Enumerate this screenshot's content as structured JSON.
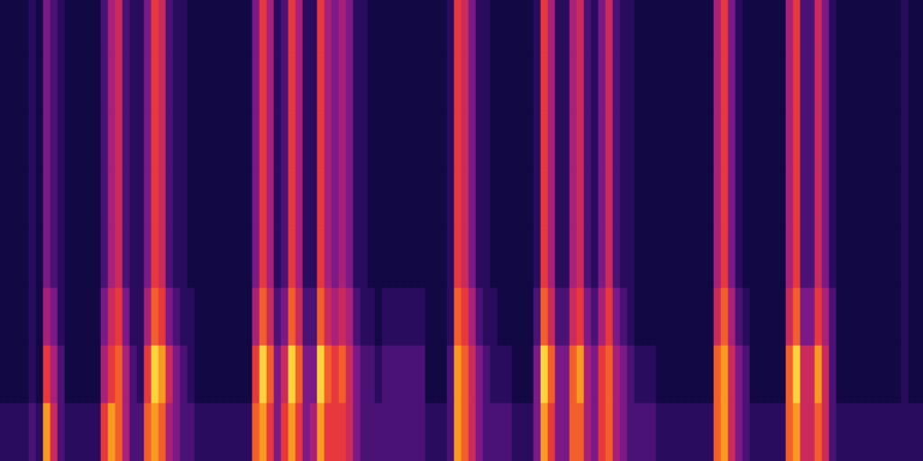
{
  "chart_data": {
    "type": "heatmap",
    "tick_labels": false,
    "grid": false,
    "zlim": [
      0,
      9
    ],
    "cells": [
      [
        0,
        0,
        0,
        0,
        1,
        0,
        3,
        2,
        1,
        0,
        0,
        0,
        0,
        0,
        2,
        4,
        5,
        2,
        1,
        1,
        3,
        6,
        5,
        2,
        1,
        1,
        0,
        0,
        0,
        0,
        0,
        0,
        0,
        0,
        0,
        3,
        6,
        4,
        1,
        2,
        6,
        4,
        1,
        1,
        6,
        4,
        3,
        4,
        3,
        1,
        1,
        0,
        0,
        0,
        0,
        0,
        0,
        0,
        0,
        0,
        0,
        0,
        1,
        6,
        5,
        3,
        1,
        1,
        0,
        0,
        0,
        0,
        0,
        0,
        1,
        6,
        4,
        1,
        1,
        4,
        5,
        2,
        1,
        3,
        5,
        2,
        1,
        1,
        0,
        0,
        0,
        0,
        0,
        0,
        0,
        0,
        0,
        0,
        0,
        4,
        6,
        3,
        1,
        0,
        0,
        0,
        0,
        0,
        0,
        4,
        6,
        2,
        2,
        5,
        3,
        1,
        0,
        0,
        0,
        0,
        0,
        0,
        0,
        0,
        0,
        1,
        0,
        0
      ],
      [
        0,
        0,
        0,
        0,
        1,
        0,
        3,
        2,
        1,
        0,
        0,
        0,
        0,
        0,
        2,
        4,
        5,
        2,
        1,
        1,
        3,
        6,
        5,
        2,
        1,
        1,
        0,
        0,
        0,
        0,
        0,
        0,
        0,
        0,
        0,
        3,
        6,
        4,
        1,
        2,
        6,
        4,
        1,
        1,
        6,
        4,
        3,
        4,
        3,
        1,
        1,
        0,
        0,
        0,
        0,
        0,
        0,
        0,
        0,
        0,
        0,
        0,
        1,
        6,
        5,
        3,
        1,
        1,
        0,
        0,
        0,
        0,
        0,
        0,
        1,
        6,
        4,
        1,
        1,
        4,
        5,
        2,
        1,
        3,
        5,
        2,
        1,
        1,
        0,
        0,
        0,
        0,
        0,
        0,
        0,
        0,
        0,
        0,
        0,
        4,
        6,
        3,
        1,
        0,
        0,
        0,
        0,
        0,
        0,
        4,
        6,
        2,
        2,
        5,
        3,
        1,
        0,
        0,
        0,
        0,
        0,
        0,
        0,
        0,
        0,
        1,
        0,
        0
      ],
      [
        0,
        0,
        0,
        0,
        1,
        0,
        3,
        2,
        1,
        0,
        0,
        0,
        0,
        0,
        2,
        4,
        5,
        2,
        1,
        1,
        3,
        6,
        5,
        2,
        1,
        1,
        0,
        0,
        0,
        0,
        0,
        0,
        0,
        0,
        0,
        3,
        6,
        4,
        1,
        2,
        6,
        4,
        1,
        1,
        6,
        4,
        3,
        4,
        3,
        1,
        1,
        0,
        0,
        0,
        0,
        0,
        0,
        0,
        0,
        0,
        0,
        0,
        1,
        6,
        5,
        3,
        1,
        1,
        0,
        0,
        0,
        0,
        0,
        0,
        1,
        6,
        4,
        1,
        1,
        4,
        5,
        2,
        1,
        3,
        5,
        2,
        1,
        1,
        0,
        0,
        0,
        0,
        0,
        0,
        0,
        0,
        0,
        0,
        0,
        4,
        6,
        3,
        1,
        0,
        0,
        0,
        0,
        0,
        0,
        4,
        6,
        2,
        2,
        5,
        3,
        1,
        0,
        0,
        0,
        0,
        0,
        0,
        0,
        0,
        0,
        1,
        0,
        0
      ],
      [
        0,
        0,
        0,
        0,
        1,
        0,
        3,
        2,
        1,
        0,
        0,
        0,
        0,
        0,
        2,
        4,
        5,
        2,
        1,
        1,
        3,
        6,
        5,
        2,
        1,
        1,
        0,
        0,
        0,
        0,
        0,
        0,
        0,
        0,
        0,
        3,
        6,
        4,
        1,
        2,
        6,
        4,
        1,
        1,
        6,
        4,
        3,
        4,
        3,
        1,
        1,
        0,
        0,
        0,
        0,
        0,
        0,
        0,
        0,
        0,
        0,
        0,
        1,
        6,
        5,
        3,
        1,
        1,
        0,
        0,
        0,
        0,
        0,
        0,
        1,
        6,
        4,
        1,
        1,
        4,
        5,
        2,
        1,
        3,
        5,
        2,
        1,
        1,
        0,
        0,
        0,
        0,
        0,
        0,
        0,
        0,
        0,
        0,
        0,
        4,
        6,
        3,
        1,
        0,
        0,
        0,
        0,
        0,
        0,
        4,
        6,
        2,
        2,
        5,
        3,
        1,
        0,
        0,
        0,
        0,
        0,
        0,
        0,
        0,
        0,
        1,
        0,
        0
      ],
      [
        0,
        0,
        0,
        0,
        1,
        0,
        3,
        2,
        1,
        0,
        0,
        0,
        0,
        0,
        2,
        4,
        5,
        2,
        1,
        1,
        3,
        6,
        5,
        2,
        1,
        1,
        0,
        0,
        0,
        0,
        0,
        0,
        0,
        0,
        0,
        3,
        6,
        4,
        1,
        2,
        6,
        4,
        1,
        1,
        6,
        4,
        3,
        4,
        3,
        1,
        1,
        0,
        0,
        0,
        0,
        0,
        0,
        0,
        0,
        0,
        0,
        0,
        1,
        6,
        5,
        3,
        1,
        1,
        0,
        0,
        0,
        0,
        0,
        0,
        1,
        6,
        4,
        1,
        1,
        4,
        5,
        2,
        1,
        3,
        5,
        2,
        1,
        1,
        0,
        0,
        0,
        0,
        0,
        0,
        0,
        0,
        0,
        0,
        0,
        4,
        6,
        3,
        1,
        0,
        0,
        0,
        0,
        0,
        0,
        4,
        6,
        2,
        2,
        5,
        3,
        1,
        0,
        0,
        0,
        0,
        0,
        0,
        0,
        0,
        0,
        1,
        0,
        0
      ],
      [
        0,
        0,
        0,
        0,
        1,
        0,
        4,
        3,
        1,
        0,
        0,
        0,
        0,
        0,
        3,
        5,
        6,
        3,
        1,
        1,
        4,
        7,
        6,
        3,
        2,
        1,
        1,
        0,
        0,
        0,
        0,
        0,
        0,
        0,
        0,
        4,
        7,
        5,
        2,
        3,
        7,
        5,
        2,
        2,
        7,
        5,
        4,
        5,
        4,
        2,
        1,
        1,
        0,
        1,
        1,
        1,
        1,
        1,
        1,
        0,
        0,
        0,
        1,
        7,
        6,
        4,
        2,
        1,
        1,
        0,
        0,
        0,
        0,
        0,
        2,
        7,
        5,
        2,
        2,
        5,
        6,
        3,
        2,
        4,
        6,
        3,
        2,
        1,
        0,
        0,
        0,
        0,
        0,
        0,
        0,
        0,
        0,
        0,
        0,
        5,
        7,
        4,
        2,
        1,
        0,
        0,
        0,
        0,
        0,
        5,
        7,
        3,
        3,
        6,
        4,
        2,
        0,
        0,
        0,
        0,
        0,
        0,
        0,
        0,
        0,
        1,
        0,
        0
      ],
      [
        0,
        0,
        0,
        0,
        1,
        0,
        6,
        4,
        2,
        0,
        0,
        0,
        0,
        0,
        4,
        6,
        7,
        4,
        2,
        1,
        6,
        9,
        8,
        5,
        3,
        2,
        1,
        0,
        0,
        0,
        0,
        0,
        0,
        0,
        0,
        6,
        9,
        7,
        3,
        5,
        9,
        7,
        3,
        3,
        9,
        7,
        6,
        7,
        5,
        3,
        2,
        2,
        1,
        2,
        2,
        2,
        2,
        2,
        2,
        0,
        0,
        0,
        2,
        8,
        7,
        5,
        3,
        2,
        1,
        1,
        1,
        0,
        0,
        0,
        3,
        9,
        7,
        3,
        3,
        7,
        8,
        4,
        3,
        6,
        7,
        4,
        3,
        2,
        1,
        1,
        1,
        0,
        0,
        0,
        0,
        0,
        0,
        0,
        0,
        7,
        8,
        5,
        3,
        2,
        0,
        0,
        0,
        0,
        0,
        7,
        9,
        5,
        5,
        8,
        5,
        2,
        0,
        0,
        0,
        0,
        0,
        0,
        0,
        0,
        0,
        1,
        0,
        0
      ],
      [
        1,
        1,
        1,
        1,
        2,
        1,
        8,
        5,
        2,
        1,
        1,
        1,
        1,
        1,
        6,
        8,
        7,
        4,
        2,
        2,
        7,
        8,
        7,
        4,
        3,
        2,
        2,
        1,
        1,
        1,
        1,
        1,
        1,
        1,
        1,
        7,
        8,
        6,
        3,
        6,
        8,
        6,
        3,
        4,
        8,
        6,
        6,
        6,
        5,
        3,
        2,
        2,
        2,
        2,
        2,
        2,
        2,
        2,
        2,
        1,
        1,
        1,
        2,
        8,
        7,
        5,
        3,
        2,
        2,
        2,
        2,
        1,
        1,
        1,
        3,
        8,
        6,
        3,
        3,
        7,
        7,
        4,
        3,
        6,
        7,
        4,
        3,
        2,
        2,
        2,
        2,
        1,
        1,
        1,
        1,
        1,
        1,
        1,
        1,
        7,
        8,
        5,
        3,
        2,
        1,
        1,
        1,
        1,
        1,
        7,
        8,
        5,
        5,
        7,
        5,
        2,
        1,
        1,
        1,
        1,
        1,
        1,
        1,
        1,
        1,
        1,
        1,
        1
      ]
    ]
  }
}
